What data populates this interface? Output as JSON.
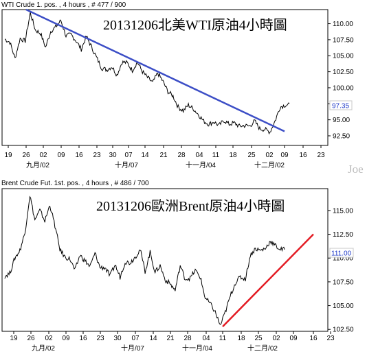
{
  "watermark": "Joe",
  "colors": {
    "trend_down": "#3c4ec6",
    "trend_up": "#e31b23",
    "last_price": "#1a35c7",
    "price_line": "#000000"
  },
  "chart_data": [
    {
      "type": "line",
      "header": "WTI Crude 1. pos. , 4 hours , # 477 / 900",
      "title": "20131206北美WTI原油4小時圖",
      "last_price": "97.35",
      "ylim": [
        91.0,
        112.2
      ],
      "y_ticks": [
        "110.00",
        "107.50",
        "105.00",
        "102.50",
        "100.00",
        "97.50",
        "95.00",
        "92.50"
      ],
      "x_ticks": [
        "19",
        "26",
        "02",
        "09",
        "16",
        "23",
        "30",
        "07",
        "14",
        "21",
        "28",
        "04",
        "11",
        "18",
        "25",
        "02",
        "09",
        "16",
        "23"
      ],
      "month_labels": [
        "九月/02",
        "十月/07",
        "十一月/04",
        "十二月/02"
      ],
      "series": [
        {
          "values": [
            107.6,
            107.1,
            104.6,
            107.7,
            107.3,
            111.7,
            109.0,
            108.5,
            106.3,
            108.8,
            109.5,
            110.5,
            108.1,
            108.3,
            107.3,
            106.0,
            108.0,
            106.4,
            104.7,
            103.1,
            102.8,
            103.3,
            102.0,
            104.0,
            103.9,
            102.7,
            104.0,
            102.5,
            101.6,
            100.8,
            102.3,
            101.0,
            99.4,
            98.7,
            97.0,
            96.4,
            97.3,
            96.7,
            95.8,
            94.8,
            94.3,
            94.7,
            94.1,
            94.9,
            94.3,
            94.5,
            94.0,
            94.1,
            94.0,
            94.8,
            93.6,
            93.5,
            93.1,
            94.8,
            97.0,
            97.3
          ]
        }
      ],
      "trendline": {
        "from": {
          "x": "26",
          "y": 112.2
        },
        "to": {
          "x": "09",
          "y": 93.2
        }
      }
    },
    {
      "type": "line",
      "header": "Brent Crude Fut. 1st. pos. , 4 hours , # 486 / 700",
      "title": "20131206歐洲Brent原油4小時圖",
      "last_price": "111.00",
      "ylim": [
        102.3,
        117.3
      ],
      "y_ticks": [
        "115.00",
        "112.50",
        "111.00",
        "110.00",
        "107.50",
        "105.00",
        "102.50"
      ],
      "x_ticks": [
        "19",
        "26",
        "02",
        "09",
        "16",
        "23",
        "30",
        "07",
        "14",
        "21",
        "28",
        "04",
        "11",
        "18",
        "25",
        "02",
        "09",
        "16",
        "23"
      ],
      "month_labels": [
        "九月/02",
        "十月/07",
        "十一月/04",
        "十二月/02"
      ],
      "series": [
        {
          "values": [
            108.1,
            108.4,
            110.0,
            110.8,
            112.6,
            116.6,
            114.0,
            115.0,
            113.9,
            115.6,
            113.4,
            110.9,
            110.1,
            109.9,
            108.7,
            110.3,
            109.7,
            109.1,
            110.5,
            109.0,
            109.0,
            108.1,
            109.3,
            108.0,
            109.6,
            109.5,
            110.1,
            110.9,
            108.6,
            110.6,
            108.5,
            109.2,
            107.7,
            107.3,
            106.6,
            109.2,
            107.8,
            107.9,
            108.7,
            108.0,
            105.8,
            105.2,
            104.3,
            102.9,
            104.3,
            106.0,
            107.4,
            108.0,
            107.8,
            110.3,
            111.0,
            110.8,
            111.0,
            111.8,
            111.3,
            110.9
          ]
        }
      ],
      "trendline": {
        "from": {
          "x": "11",
          "y": 102.8
        },
        "to": {
          "x": "16",
          "y": 112.5
        }
      }
    }
  ]
}
